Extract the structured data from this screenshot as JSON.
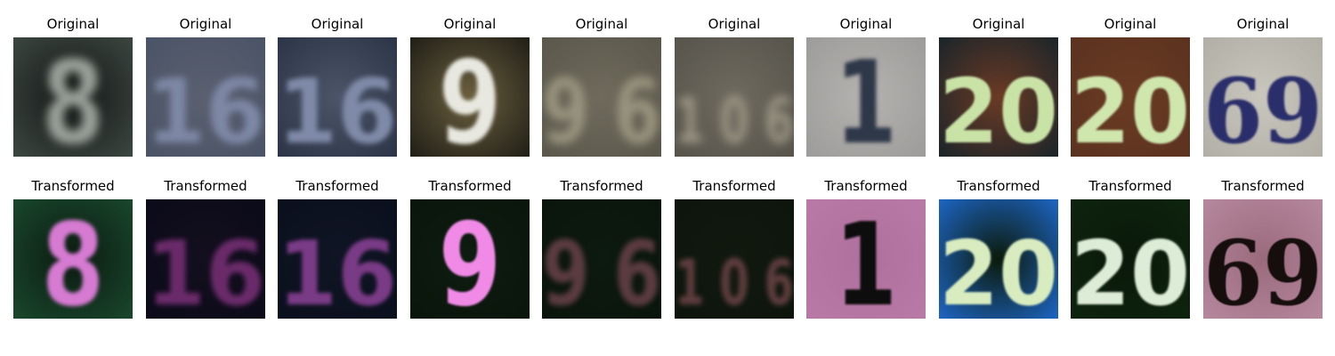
{
  "rows": [
    {
      "title": "Original",
      "panels": [
        {
          "glyph": "8",
          "bg": "#141615",
          "fg": "#9aa09a",
          "fg2": "#3e4a44",
          "blur": 5,
          "style": "sans"
        },
        {
          "glyph": "16",
          "bg": "#5a6070",
          "fg": "#7e88a6",
          "fg2": "#4a5266",
          "blur": 4,
          "style": "sans"
        },
        {
          "glyph": "16",
          "bg": "#4c5468",
          "fg": "#7f8aa8",
          "fg2": "#2a3245",
          "blur": 3,
          "style": "sans"
        },
        {
          "glyph": "9",
          "bg": "#6b5f3e",
          "fg": "#e8e8e0",
          "fg2": "#1b1a14",
          "blur": 2,
          "style": "sans"
        },
        {
          "glyph": "9 6",
          "bg": "#6f6a5c",
          "fg": "#9a947f",
          "fg2": "#59564a",
          "blur": 5,
          "style": "sans"
        },
        {
          "glyph": "1 0 6",
          "bg": "#6e6a5f",
          "fg": "#9b9583",
          "fg2": "#55524a",
          "blur": 5,
          "style": "sans"
        },
        {
          "glyph": "1",
          "bg": "#b5b3b0",
          "fg": "#2f3848",
          "fg2": "#9c9a98",
          "blur": 2,
          "style": "sans"
        },
        {
          "glyph": "20",
          "bg": "#6b3a24",
          "fg": "#c9e2a6",
          "fg2": "#15232a",
          "blur": 1,
          "style": "sans"
        },
        {
          "glyph": "20",
          "bg": "#6a3b22",
          "fg": "#cfe6ad",
          "fg2": "#5a3220",
          "blur": 1,
          "style": "sans"
        },
        {
          "glyph": "69",
          "bg": "#c9c6bd",
          "fg": "#2a2f6a",
          "fg2": "#b0ada5",
          "blur": 1,
          "style": "serif"
        }
      ]
    },
    {
      "title": "Transformed",
      "panels": [
        {
          "glyph": "8",
          "bg": "#0b1a10",
          "fg": "#d67ad2",
          "fg2": "#1a4a2e",
          "blur": 2,
          "style": "sans"
        },
        {
          "glyph": "16",
          "bg": "#140f1e",
          "fg": "#6a2a6a",
          "fg2": "#0a0a18",
          "blur": 3,
          "style": "sans"
        },
        {
          "glyph": "16",
          "bg": "#101525",
          "fg": "#7a3a86",
          "fg2": "#0a0f1c",
          "blur": 2,
          "style": "sans"
        },
        {
          "glyph": "9",
          "bg": "#0e1c10",
          "fg": "#f08ae6",
          "fg2": "#0a140a",
          "blur": 1,
          "style": "sans"
        },
        {
          "glyph": "9 6",
          "bg": "#0d1a0f",
          "fg": "#5a3a40",
          "fg2": "#0a140c",
          "blur": 3,
          "style": "sans"
        },
        {
          "glyph": "1 0 6",
          "bg": "#11190f",
          "fg": "#5e3c3e",
          "fg2": "#0c140c",
          "blur": 3,
          "style": "sans"
        },
        {
          "glyph": "1",
          "bg": "#b0709e",
          "fg": "#0a0a0a",
          "fg2": "#b97aa8",
          "blur": 1,
          "style": "sans"
        },
        {
          "glyph": "20",
          "bg": "#0b1a0a",
          "fg": "#d8ecc0",
          "fg2": "#1e6ad0",
          "blur": 1,
          "style": "sans"
        },
        {
          "glyph": "20",
          "bg": "#0a180a",
          "fg": "#dcecd6",
          "fg2": "#0e240e",
          "blur": 1,
          "style": "sans"
        },
        {
          "glyph": "69",
          "bg": "#9a6a7c",
          "fg": "#141010",
          "fg2": "#b88aa0",
          "blur": 0.6,
          "style": "serif"
        }
      ]
    }
  ]
}
